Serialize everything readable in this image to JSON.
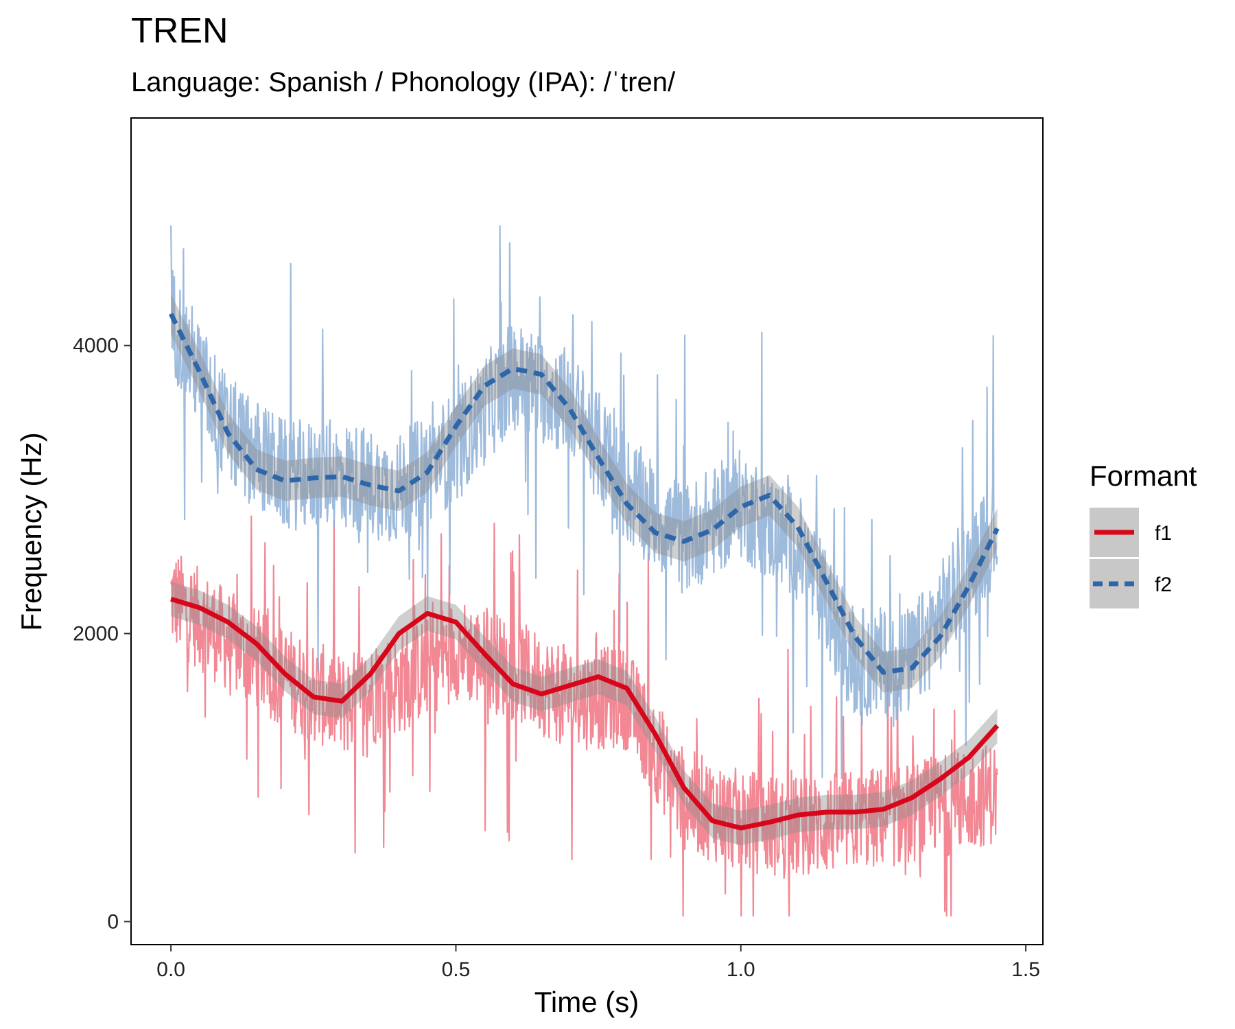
{
  "chart_data": {
    "type": "line",
    "title": "TREN",
    "subtitle": "Language: Spanish / Phonology (IPA): /ˈtren/",
    "xlabel": "Time (s)",
    "ylabel": "Frequency (Hz)",
    "xlim": [
      -0.07,
      1.53
    ],
    "ylim": [
      -160,
      5580
    ],
    "x_ticks": [
      "0.0",
      "0.5",
      "1.0",
      "1.5"
    ],
    "x_tick_values": [
      0,
      0.5,
      1.0,
      1.5
    ],
    "y_ticks": [
      "0",
      "2000",
      "4000"
    ],
    "y_tick_values": [
      0,
      2000,
      4000
    ],
    "grid": false,
    "legend": {
      "title": "Formant",
      "position": "right",
      "entries": [
        {
          "name": "f1",
          "color": "#d7061a",
          "linetype": "solid"
        },
        {
          "name": "f2",
          "color": "#2e66aa",
          "linetype": "dashed"
        }
      ]
    },
    "series": [
      {
        "name": "f1",
        "kind": "raw",
        "color": "#ee7381",
        "x_start": 0.0,
        "x_end": 1.45,
        "n_points": 1450,
        "trend_knots": {
          "x": [
            0,
            0.1,
            0.2,
            0.3,
            0.4,
            0.5,
            0.6,
            0.7,
            0.8,
            0.9,
            1.0,
            1.1,
            1.2,
            1.3,
            1.45
          ],
          "y": [
            2250,
            1950,
            1700,
            1500,
            1650,
            1900,
            1750,
            1550,
            1550,
            850,
            700,
            650,
            700,
            750,
            900
          ]
        },
        "spread": 650
      },
      {
        "name": "f2",
        "kind": "raw",
        "color": "#8dafd6",
        "x_start": 0.0,
        "x_end": 1.45,
        "n_points": 1450,
        "trend_knots": {
          "x": [
            0,
            0.1,
            0.2,
            0.3,
            0.4,
            0.5,
            0.6,
            0.7,
            0.8,
            0.9,
            1.0,
            1.1,
            1.2,
            1.3,
            1.45
          ],
          "y": [
            4200,
            3400,
            3100,
            3100,
            3000,
            3300,
            3800,
            3600,
            3000,
            2650,
            2900,
            2600,
            1800,
            1800,
            2750
          ]
        },
        "spread": 700
      },
      {
        "name": "f1",
        "kind": "smooth",
        "color": "#d7061a",
        "linetype": "solid",
        "x": [
          0.0,
          0.05,
          0.1,
          0.15,
          0.2,
          0.25,
          0.3,
          0.35,
          0.4,
          0.45,
          0.5,
          0.55,
          0.6,
          0.65,
          0.7,
          0.75,
          0.8,
          0.85,
          0.9,
          0.95,
          1.0,
          1.05,
          1.1,
          1.15,
          1.2,
          1.25,
          1.3,
          1.35,
          1.4,
          1.45
        ],
        "y": [
          2240,
          2180,
          2080,
          1930,
          1720,
          1560,
          1530,
          1720,
          2000,
          2140,
          2080,
          1860,
          1650,
          1580,
          1640,
          1700,
          1620,
          1300,
          930,
          700,
          650,
          690,
          740,
          760,
          760,
          780,
          860,
          990,
          1140,
          1360
        ],
        "band": 120
      },
      {
        "name": "f2",
        "kind": "smooth",
        "color": "#2e66aa",
        "linetype": "dashed",
        "x": [
          0.0,
          0.05,
          0.1,
          0.15,
          0.2,
          0.25,
          0.3,
          0.35,
          0.4,
          0.45,
          0.5,
          0.55,
          0.6,
          0.65,
          0.7,
          0.75,
          0.8,
          0.85,
          0.9,
          0.95,
          1.0,
          1.05,
          1.1,
          1.15,
          1.2,
          1.25,
          1.3,
          1.35,
          1.4,
          1.45
        ],
        "y": [
          4220,
          3820,
          3390,
          3140,
          3060,
          3080,
          3090,
          3030,
          2990,
          3120,
          3440,
          3720,
          3840,
          3800,
          3560,
          3220,
          2900,
          2700,
          2640,
          2720,
          2880,
          2960,
          2740,
          2360,
          1980,
          1730,
          1760,
          1980,
          2330,
          2730
        ],
        "band": 140
      }
    ]
  }
}
